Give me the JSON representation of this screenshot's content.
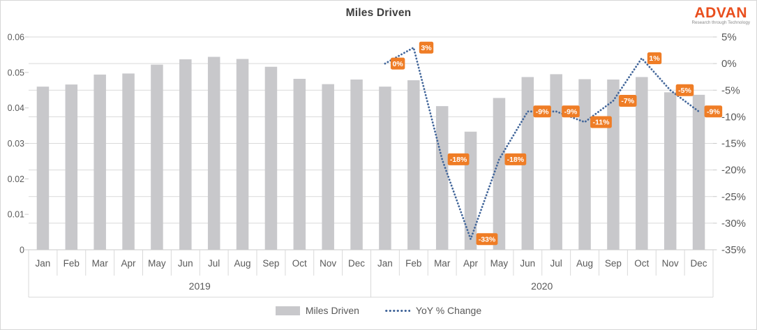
{
  "header": {
    "title": "Miles Driven",
    "logo": {
      "name": "ADVAN",
      "tagline": "Research through Technology",
      "color": "#e94e1d",
      "tagline_color": "#8a8a8a"
    }
  },
  "chart_data": {
    "type": "combo",
    "title": "Miles Driven",
    "categories": [
      "Jan",
      "Feb",
      "Mar",
      "Apr",
      "May",
      "Jun",
      "Jul",
      "Aug",
      "Sep",
      "Oct",
      "Nov",
      "Dec",
      "Jan",
      "Feb",
      "Mar",
      "Apr",
      "May",
      "Jun",
      "Jul",
      "Aug",
      "Sep",
      "Oct",
      "Nov",
      "Dec"
    ],
    "year_groups": [
      {
        "label": "2019",
        "start": 0,
        "span": 12
      },
      {
        "label": "2020",
        "start": 12,
        "span": 12
      }
    ],
    "bar_series": {
      "name": "Miles Driven",
      "type": "bar",
      "color": "#c8c8cb",
      "values": [
        0.046,
        0.0466,
        0.0494,
        0.0497,
        0.0522,
        0.0537,
        0.0544,
        0.0538,
        0.0516,
        0.0482,
        0.0467,
        0.048,
        0.046,
        0.0478,
        0.0405,
        0.0333,
        0.0428,
        0.0487,
        0.0495,
        0.0481,
        0.048,
        0.0487,
        0.0444,
        0.0437
      ]
    },
    "line_series": {
      "name": "YoY % Change",
      "type": "line",
      "style": "dotted",
      "axis": "right",
      "color": "#42669a",
      "values": [
        null,
        null,
        null,
        null,
        null,
        null,
        null,
        null,
        null,
        null,
        null,
        null,
        0,
        3,
        -18,
        -33,
        -18,
        -9,
        -9,
        -11,
        -7,
        1,
        -5,
        -9
      ],
      "labels": [
        "0%",
        "3%",
        "-18%",
        "-33%",
        "-18%",
        "-9%",
        "-9%",
        "-11%",
        "-7%",
        "1%",
        "-5%",
        "-9%"
      ],
      "label_bg": "#ef7d26",
      "label_text_color": "#ffffff"
    },
    "left_axis": {
      "min": 0,
      "max": 0.06,
      "step": 0.01,
      "tick_labels": [
        "0",
        "0.01",
        "0.02",
        "0.03",
        "0.04",
        "0.05",
        "0.06"
      ]
    },
    "right_axis": {
      "min": -35,
      "max": 5,
      "step": 5,
      "tick_labels": [
        "5%",
        "0%",
        "-5%",
        "-10%",
        "-15%",
        "-20%",
        "-25%",
        "-30%",
        "-35%"
      ]
    },
    "grid": {
      "on": true,
      "color": "#d9d9d9",
      "aligned_to": "right_axis"
    },
    "axis_text_color": "#595959",
    "axis_line_color": "#c9c9c9",
    "legend_position": "bottom"
  },
  "legend": {
    "items": [
      {
        "label": "Miles Driven",
        "swatch": "bar"
      },
      {
        "label": "YoY % Change",
        "swatch": "dotted-line"
      }
    ]
  }
}
